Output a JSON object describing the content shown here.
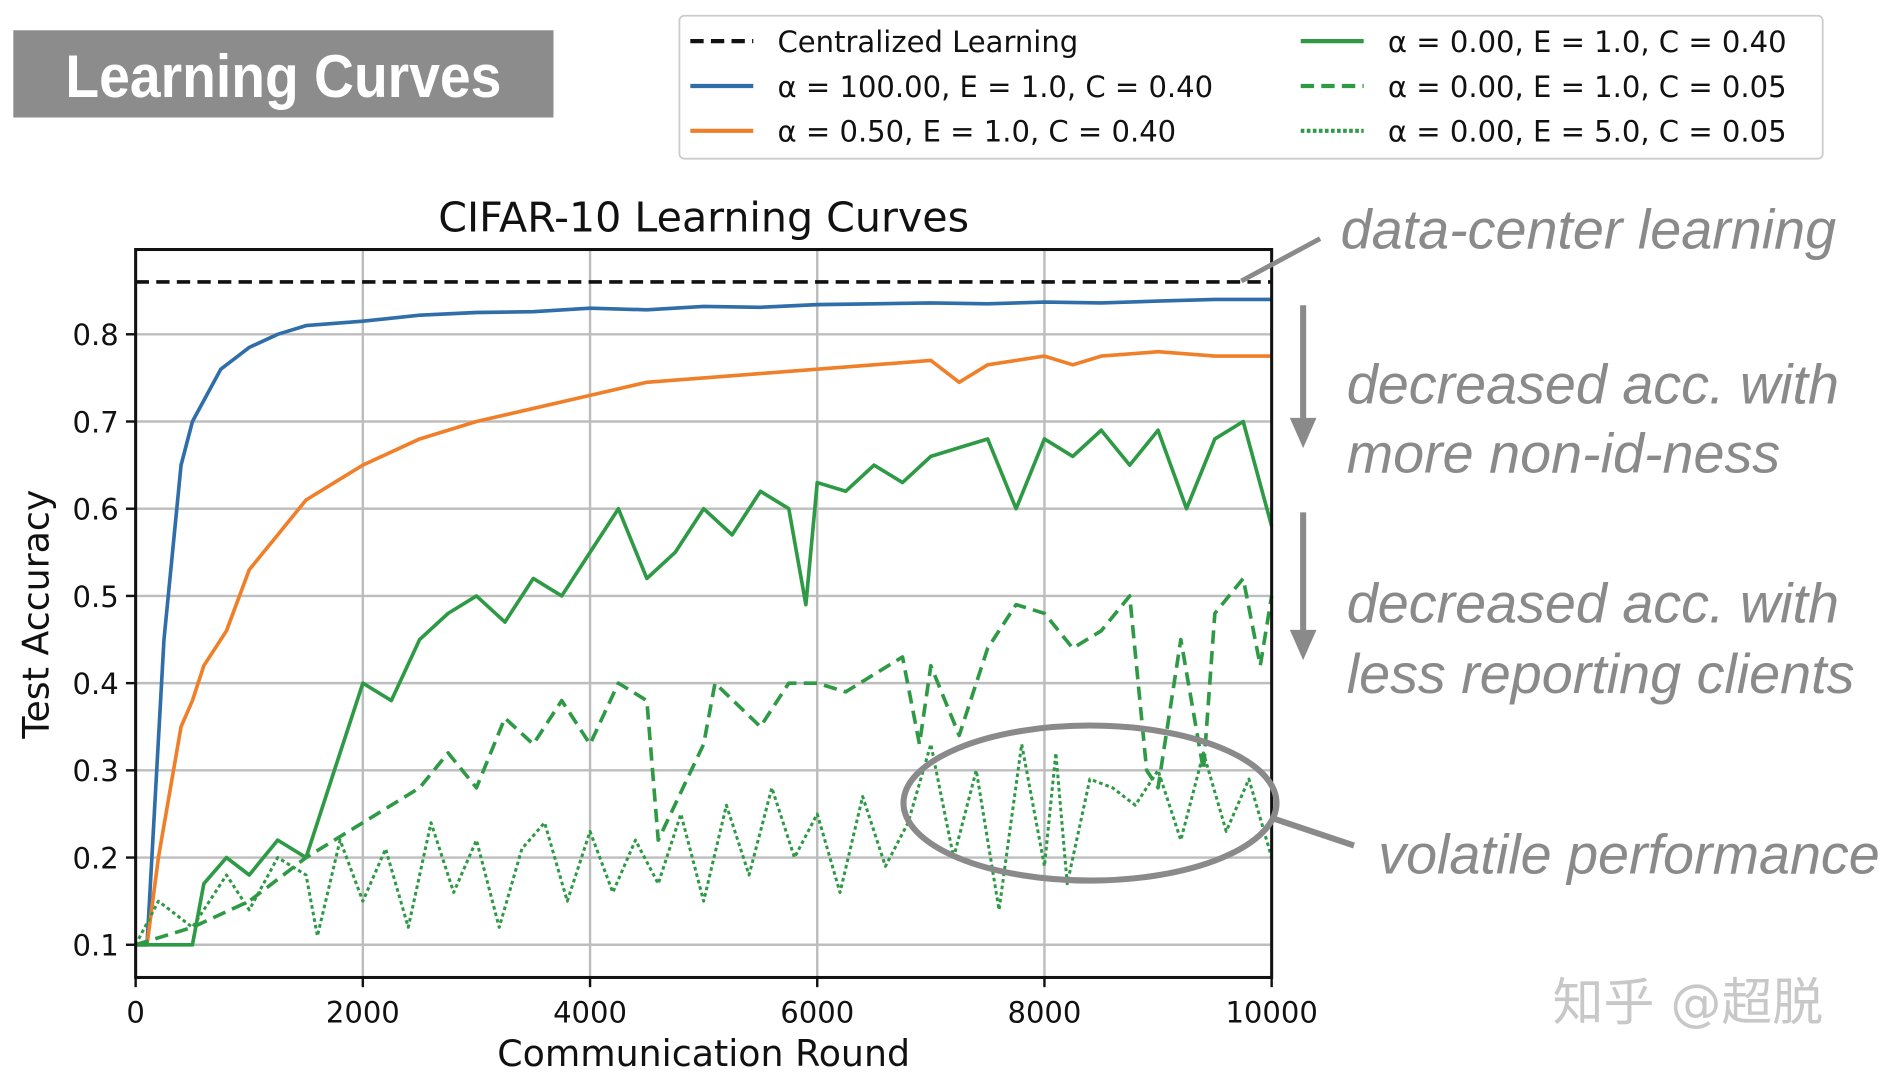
{
  "badge": {
    "title": "Learning Curves",
    "bg": "#8c8c8c"
  },
  "watermark": "知乎 @超脱",
  "annotations": {
    "datacenter": "data-center learning",
    "noniid_1": "decreased acc. with",
    "noniid_2": "more non-id-ness",
    "clients_1": "decreased acc. with",
    "clients_2": "less reporting clients",
    "volatile": "volatile performance"
  },
  "chart_data": {
    "type": "line",
    "title": "CIFAR-10 Learning Curves",
    "xlabel": "Communication Round",
    "ylabel": "Test Accuracy",
    "xlim": [
      0,
      10000
    ],
    "ylim": [
      0.07,
      0.9
    ],
    "xticks": [
      "0",
      "2000",
      "4000",
      "6000",
      "8000",
      "10000"
    ],
    "yticks": [
      "0.1",
      "0.2",
      "0.3",
      "0.4",
      "0.5",
      "0.6",
      "0.7",
      "0.8"
    ],
    "grid": true,
    "legend_placement": "top (outside)",
    "series": [
      {
        "name": "Centralized Learning",
        "color": "#111111",
        "style": "dashed",
        "x": [
          0,
          10000
        ],
        "y": [
          0.86,
          0.86
        ]
      },
      {
        "name": "α = 100.00, E = 1.0, C = 0.40",
        "color": "#2f6ea8",
        "style": "solid",
        "x": [
          0,
          100,
          250,
          400,
          500,
          750,
          1000,
          1250,
          1500,
          2000,
          2500,
          3000,
          3500,
          4000,
          4500,
          5000,
          5500,
          6000,
          6500,
          7000,
          7500,
          8000,
          8500,
          9000,
          9500,
          10000
        ],
        "y": [
          0.1,
          0.1,
          0.45,
          0.65,
          0.7,
          0.76,
          0.785,
          0.8,
          0.81,
          0.815,
          0.822,
          0.825,
          0.826,
          0.83,
          0.828,
          0.832,
          0.831,
          0.834,
          0.835,
          0.836,
          0.835,
          0.837,
          0.836,
          0.838,
          0.84,
          0.84
        ]
      },
      {
        "name": "α = 0.50, E = 1.0, C = 0.40",
        "color": "#f07f2a",
        "style": "solid",
        "x": [
          0,
          100,
          200,
          400,
          500,
          600,
          800,
          1000,
          1250,
          1500,
          1750,
          2000,
          2500,
          3000,
          3500,
          4000,
          4500,
          5000,
          5500,
          6000,
          6500,
          7000,
          7250,
          7500,
          8000,
          8250,
          8500,
          9000,
          9500,
          10000
        ],
        "y": [
          0.1,
          0.1,
          0.2,
          0.35,
          0.38,
          0.42,
          0.46,
          0.53,
          0.57,
          0.61,
          0.63,
          0.65,
          0.68,
          0.7,
          0.715,
          0.73,
          0.745,
          0.75,
          0.755,
          0.76,
          0.765,
          0.77,
          0.745,
          0.765,
          0.775,
          0.765,
          0.775,
          0.78,
          0.775,
          0.775
        ]
      },
      {
        "name": "α = 0.00, E = 1.0, C = 0.40",
        "color": "#2e9a45",
        "style": "solid",
        "x": [
          0,
          500,
          600,
          800,
          1000,
          1250,
          1500,
          1750,
          2000,
          2250,
          2500,
          2750,
          3000,
          3250,
          3500,
          3750,
          4000,
          4250,
          4500,
          4750,
          5000,
          5250,
          5500,
          5750,
          5900,
          6000,
          6250,
          6500,
          6750,
          7000,
          7250,
          7500,
          7750,
          8000,
          8250,
          8500,
          8750,
          9000,
          9250,
          9500,
          9750,
          10000
        ],
        "y": [
          0.1,
          0.1,
          0.17,
          0.2,
          0.18,
          0.22,
          0.2,
          0.3,
          0.4,
          0.38,
          0.45,
          0.48,
          0.5,
          0.47,
          0.52,
          0.5,
          0.55,
          0.6,
          0.52,
          0.55,
          0.6,
          0.57,
          0.62,
          0.6,
          0.49,
          0.63,
          0.62,
          0.65,
          0.63,
          0.66,
          0.67,
          0.68,
          0.6,
          0.68,
          0.66,
          0.69,
          0.65,
          0.69,
          0.6,
          0.68,
          0.7,
          0.58
        ]
      },
      {
        "name": "α = 0.00, E = 1.0, C = 0.05",
        "color": "#2e9a45",
        "style": "dashed",
        "x": [
          0,
          500,
          1000,
          1500,
          2000,
          2500,
          2750,
          3000,
          3250,
          3500,
          3750,
          4000,
          4250,
          4500,
          4600,
          5000,
          5100,
          5500,
          5750,
          6000,
          6250,
          6500,
          6750,
          6900,
          7000,
          7250,
          7500,
          7750,
          8000,
          8250,
          8500,
          8750,
          8900,
          9000,
          9200,
          9400,
          9500,
          9750,
          9900,
          10000
        ],
        "y": [
          0.1,
          0.12,
          0.15,
          0.2,
          0.24,
          0.28,
          0.32,
          0.28,
          0.36,
          0.33,
          0.38,
          0.33,
          0.4,
          0.38,
          0.22,
          0.33,
          0.4,
          0.35,
          0.4,
          0.4,
          0.39,
          0.41,
          0.43,
          0.33,
          0.42,
          0.34,
          0.44,
          0.49,
          0.48,
          0.44,
          0.46,
          0.5,
          0.3,
          0.28,
          0.45,
          0.3,
          0.48,
          0.52,
          0.42,
          0.5
        ]
      },
      {
        "name": "α = 0.00, E = 5.0, C = 0.05",
        "color": "#2e9a45",
        "style": "dotted",
        "x": [
          0,
          200,
          500,
          800,
          1000,
          1250,
          1500,
          1600,
          1800,
          2000,
          2200,
          2400,
          2600,
          2800,
          3000,
          3200,
          3400,
          3600,
          3800,
          4000,
          4200,
          4400,
          4600,
          4800,
          5000,
          5200,
          5400,
          5600,
          5800,
          6000,
          6200,
          6400,
          6600,
          6800,
          7000,
          7200,
          7400,
          7600,
          7800,
          8000,
          8100,
          8200,
          8400,
          8600,
          8800,
          9000,
          9200,
          9400,
          9600,
          9800,
          10000
        ],
        "y": [
          0.1,
          0.15,
          0.12,
          0.18,
          0.14,
          0.2,
          0.18,
          0.11,
          0.22,
          0.15,
          0.21,
          0.12,
          0.24,
          0.16,
          0.22,
          0.12,
          0.21,
          0.24,
          0.15,
          0.23,
          0.16,
          0.22,
          0.17,
          0.25,
          0.15,
          0.26,
          0.18,
          0.28,
          0.2,
          0.25,
          0.16,
          0.27,
          0.19,
          0.24,
          0.33,
          0.2,
          0.3,
          0.14,
          0.33,
          0.19,
          0.32,
          0.17,
          0.29,
          0.28,
          0.26,
          0.3,
          0.22,
          0.32,
          0.23,
          0.29,
          0.2
        ]
      }
    ]
  }
}
